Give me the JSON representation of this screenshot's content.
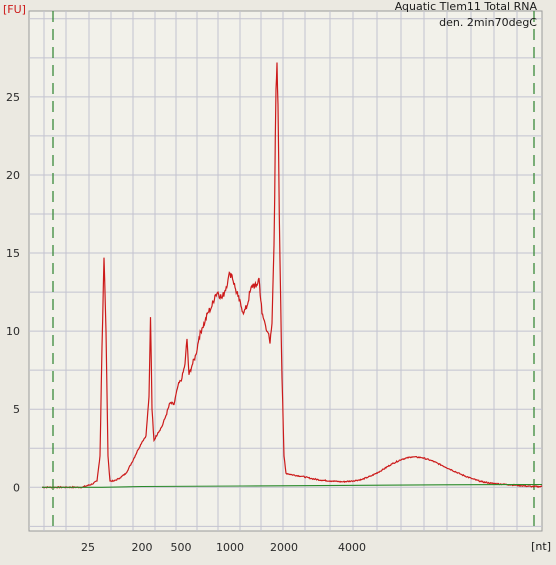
{
  "chart_data": {
    "type": "line",
    "title": "Aquatic Tlem11 Total RNA",
    "subtitle": "den. 2min70degC",
    "ylabel": "[FU]",
    "xlabel": "[nt]",
    "x_ticks": [
      "25",
      "200",
      "500",
      "1000",
      "2000",
      "4000"
    ],
    "y_ticks": [
      0,
      5,
      10,
      15,
      20,
      25
    ],
    "ylim": [
      -2.8,
      30.5
    ],
    "grid": true,
    "colors": {
      "trace": "#cc1a1a",
      "baseline": "#2a8a2a",
      "markers": "#3a8a3a",
      "grid": "#c3c3d0",
      "plot_bg": "#f2f1ea"
    },
    "series": [
      {
        "values": [
          [
            0,
            0.0
          ],
          [
            10,
            0.0
          ],
          [
            20,
            0.0
          ],
          [
            40,
            0.0
          ],
          [
            45,
            0.1
          ],
          [
            50,
            0.2
          ],
          [
            55,
            0.4
          ],
          [
            58,
            2.0
          ],
          [
            60,
            9.0
          ],
          [
            62,
            14.7
          ],
          [
            64,
            10.0
          ],
          [
            66,
            2.0
          ],
          [
            68,
            0.4
          ],
          [
            72,
            0.4
          ],
          [
            78,
            0.6
          ],
          [
            84,
            0.9
          ],
          [
            90,
            1.6
          ],
          [
            96,
            2.4
          ],
          [
            100,
            2.9
          ],
          [
            104,
            3.3
          ],
          [
            107,
            5.8
          ],
          [
            108.5,
            10.9
          ],
          [
            110,
            5.0
          ],
          [
            112,
            3.0
          ],
          [
            116,
            3.5
          ],
          [
            120,
            3.9
          ],
          [
            124,
            4.6
          ],
          [
            128,
            5.4
          ],
          [
            132,
            5.3
          ],
          [
            136,
            6.5
          ],
          [
            140,
            7.0
          ],
          [
            143,
            7.9
          ],
          [
            145,
            9.5
          ],
          [
            147,
            7.2
          ],
          [
            150,
            7.8
          ],
          [
            154,
            8.5
          ],
          [
            157,
            9.6
          ],
          [
            160,
            10.2
          ],
          [
            163,
            10.6
          ],
          [
            166,
            11.2
          ],
          [
            170,
            11.6
          ],
          [
            173,
            12.3
          ],
          [
            176,
            12.5
          ],
          [
            180,
            12.1
          ],
          [
            183,
            12.6
          ],
          [
            186,
            13.3
          ],
          [
            188,
            13.7
          ],
          [
            190,
            13.6
          ],
          [
            193,
            12.8
          ],
          [
            196,
            12.2
          ],
          [
            199,
            11.6
          ],
          [
            202,
            11.2
          ],
          [
            205,
            11.6
          ],
          [
            208,
            12.5
          ],
          [
            211,
            13.0
          ],
          [
            214,
            12.8
          ],
          [
            217,
            13.4
          ],
          [
            220,
            11.1
          ],
          [
            223,
            10.5
          ],
          [
            226,
            9.9
          ],
          [
            228,
            9.2
          ],
          [
            230,
            10.5
          ],
          [
            232,
            15.5
          ],
          [
            234,
            25.5
          ],
          [
            235,
            27.2
          ],
          [
            236,
            24.5
          ],
          [
            238,
            14.5
          ],
          [
            240,
            7.0
          ],
          [
            242,
            2.0
          ],
          [
            244,
            0.9
          ],
          [
            250,
            0.8
          ],
          [
            260,
            0.7
          ],
          [
            270,
            0.55
          ],
          [
            280,
            0.45
          ],
          [
            290,
            0.4
          ],
          [
            300,
            0.35
          ],
          [
            310,
            0.4
          ],
          [
            320,
            0.5
          ],
          [
            330,
            0.75
          ],
          [
            340,
            1.1
          ],
          [
            350,
            1.5
          ],
          [
            360,
            1.8
          ],
          [
            370,
            1.95
          ],
          [
            380,
            1.9
          ],
          [
            390,
            1.7
          ],
          [
            400,
            1.4
          ],
          [
            410,
            1.1
          ],
          [
            420,
            0.8
          ],
          [
            430,
            0.55
          ],
          [
            440,
            0.35
          ],
          [
            450,
            0.25
          ],
          [
            460,
            0.2
          ],
          [
            470,
            0.15
          ],
          [
            480,
            0.1
          ],
          [
            490,
            0.05
          ],
          [
            500,
            0.05
          ]
        ]
      },
      {
        "values": [
          [
            0,
            0.0
          ],
          [
            60,
            0.0
          ],
          [
            100,
            0.05
          ],
          [
            200,
            0.08
          ],
          [
            300,
            0.12
          ],
          [
            400,
            0.16
          ],
          [
            500,
            0.18
          ]
        ]
      }
    ]
  }
}
